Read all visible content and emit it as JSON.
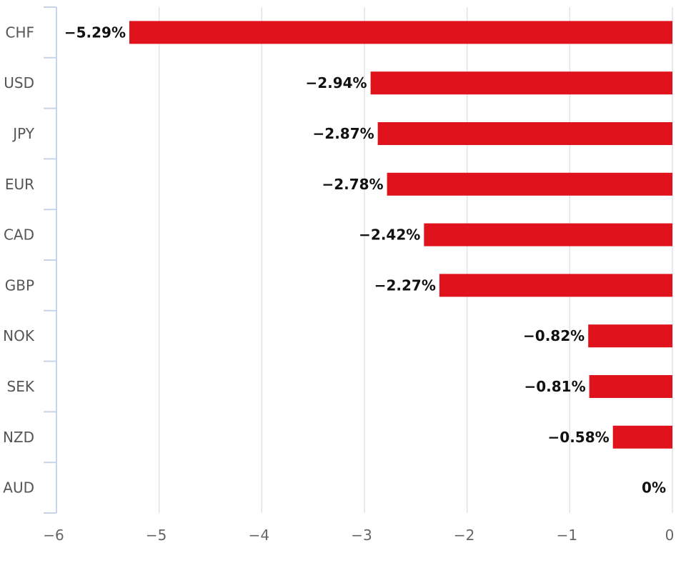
{
  "chart_data": {
    "type": "bar",
    "orientation": "horizontal",
    "categories": [
      "CHF",
      "USD",
      "JPY",
      "EUR",
      "CAD",
      "GBP",
      "NOK",
      "SEK",
      "NZD",
      "AUD"
    ],
    "values": [
      -5.29,
      -2.94,
      -2.87,
      -2.78,
      -2.42,
      -2.27,
      -0.82,
      -0.81,
      -0.58,
      0
    ],
    "data_labels": [
      "−5.29%",
      "−2.94%",
      "−2.87%",
      "−2.78%",
      "−2.42%",
      "−2.27%",
      "−0.82%",
      "−0.81%",
      "−0.58%",
      "0%"
    ],
    "xlim": [
      -6,
      0
    ],
    "x_ticks": [
      -6,
      -5,
      -4,
      -3,
      -2,
      -1,
      0
    ],
    "x_tick_labels": [
      "−6",
      "−5",
      "−4",
      "−3",
      "−2",
      "−1",
      "0"
    ],
    "title": "",
    "xlabel": "",
    "ylabel": "",
    "grid": true,
    "colors": {
      "bar": "#e0121b",
      "grid": "#dfe3ea",
      "axis": "#c8d4e8"
    }
  }
}
